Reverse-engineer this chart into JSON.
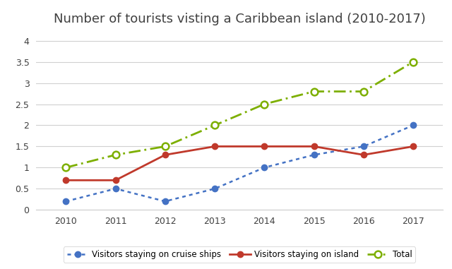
{
  "title": "Number of tourists visting a Caribbean island (2010-2017)",
  "years": [
    2010,
    2011,
    2012,
    2013,
    2014,
    2015,
    2016,
    2017
  ],
  "cruise_ships": [
    0.2,
    0.5,
    0.2,
    0.5,
    1.0,
    1.3,
    1.5,
    2.0
  ],
  "island": [
    0.7,
    0.7,
    1.3,
    1.5,
    1.5,
    1.5,
    1.3,
    1.5
  ],
  "total": [
    1.0,
    1.3,
    1.5,
    2.0,
    2.5,
    2.8,
    2.8,
    3.5
  ],
  "cruise_color": "#4472c4",
  "island_color": "#c0392b",
  "total_color": "#7daf00",
  "ylim": [
    0,
    4.2
  ],
  "ytick_values": [
    0,
    0.5,
    1.0,
    1.5,
    2.0,
    2.5,
    3.0,
    3.5,
    4.0
  ],
  "ytick_labels": [
    "0",
    "0.5",
    "1",
    "1.5",
    "2",
    "2.5",
    "3",
    "3.5",
    "4"
  ],
  "legend_cruise": "Visitors staying on cruise ships",
  "legend_island": "Visitors staying on island",
  "legend_total": "Total",
  "title_fontsize": 13,
  "title_color": "#404040",
  "background_color": "#ffffff",
  "grid_color": "#d0d0d0",
  "tick_fontsize": 9
}
